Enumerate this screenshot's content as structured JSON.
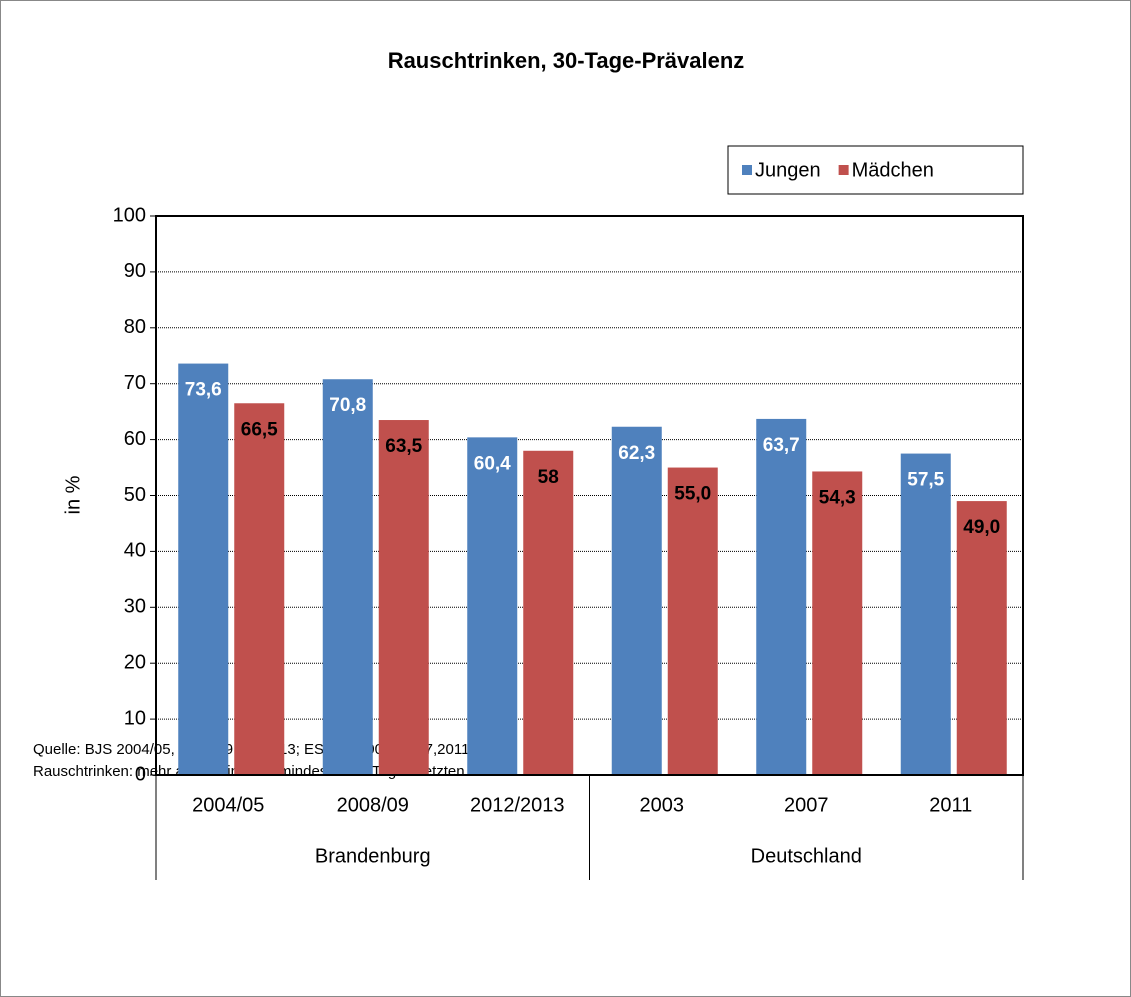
{
  "chart_data": {
    "type": "bar",
    "title": "Rauschtrinken, 30-Tage-Prävalenz",
    "ylabel": "in %",
    "groups": [
      {
        "name": "Brandenburg",
        "categories": [
          "2004/05",
          "2008/09",
          "2012/2013"
        ]
      },
      {
        "name": "Deutschland",
        "categories": [
          "2003",
          "2007",
          "2011"
        ]
      }
    ],
    "series": [
      {
        "name": "Jungen",
        "color": "#4f81bd",
        "values": [
          73.6,
          70.8,
          60.4,
          62.3,
          63.7,
          57.5
        ],
        "value_labels": [
          "73,6",
          "70,8",
          "60,4",
          "62,3",
          "63,7",
          "57,5"
        ]
      },
      {
        "name": "Mädchen",
        "color": "#c0504d",
        "values": [
          66.5,
          63.5,
          58,
          55.0,
          54.3,
          49.0
        ],
        "value_labels": [
          "66,5",
          "63,5",
          "58",
          "55,0",
          "54,3",
          "49,0"
        ]
      }
    ],
    "ylim": [
      0,
      100
    ],
    "yticks": [
      0,
      10,
      20,
      30,
      40,
      50,
      60,
      70,
      80,
      90,
      100
    ],
    "grid": true,
    "legend": "top-right",
    "notes": [
      "Quelle: BJS 2004/05, 2008/09, 2012/13; ESPAD 2003, 2007,2011",
      "Rauschtrinken: mehr als 5 Drinks an mindestens 1 Tag im letzten Monat"
    ]
  }
}
